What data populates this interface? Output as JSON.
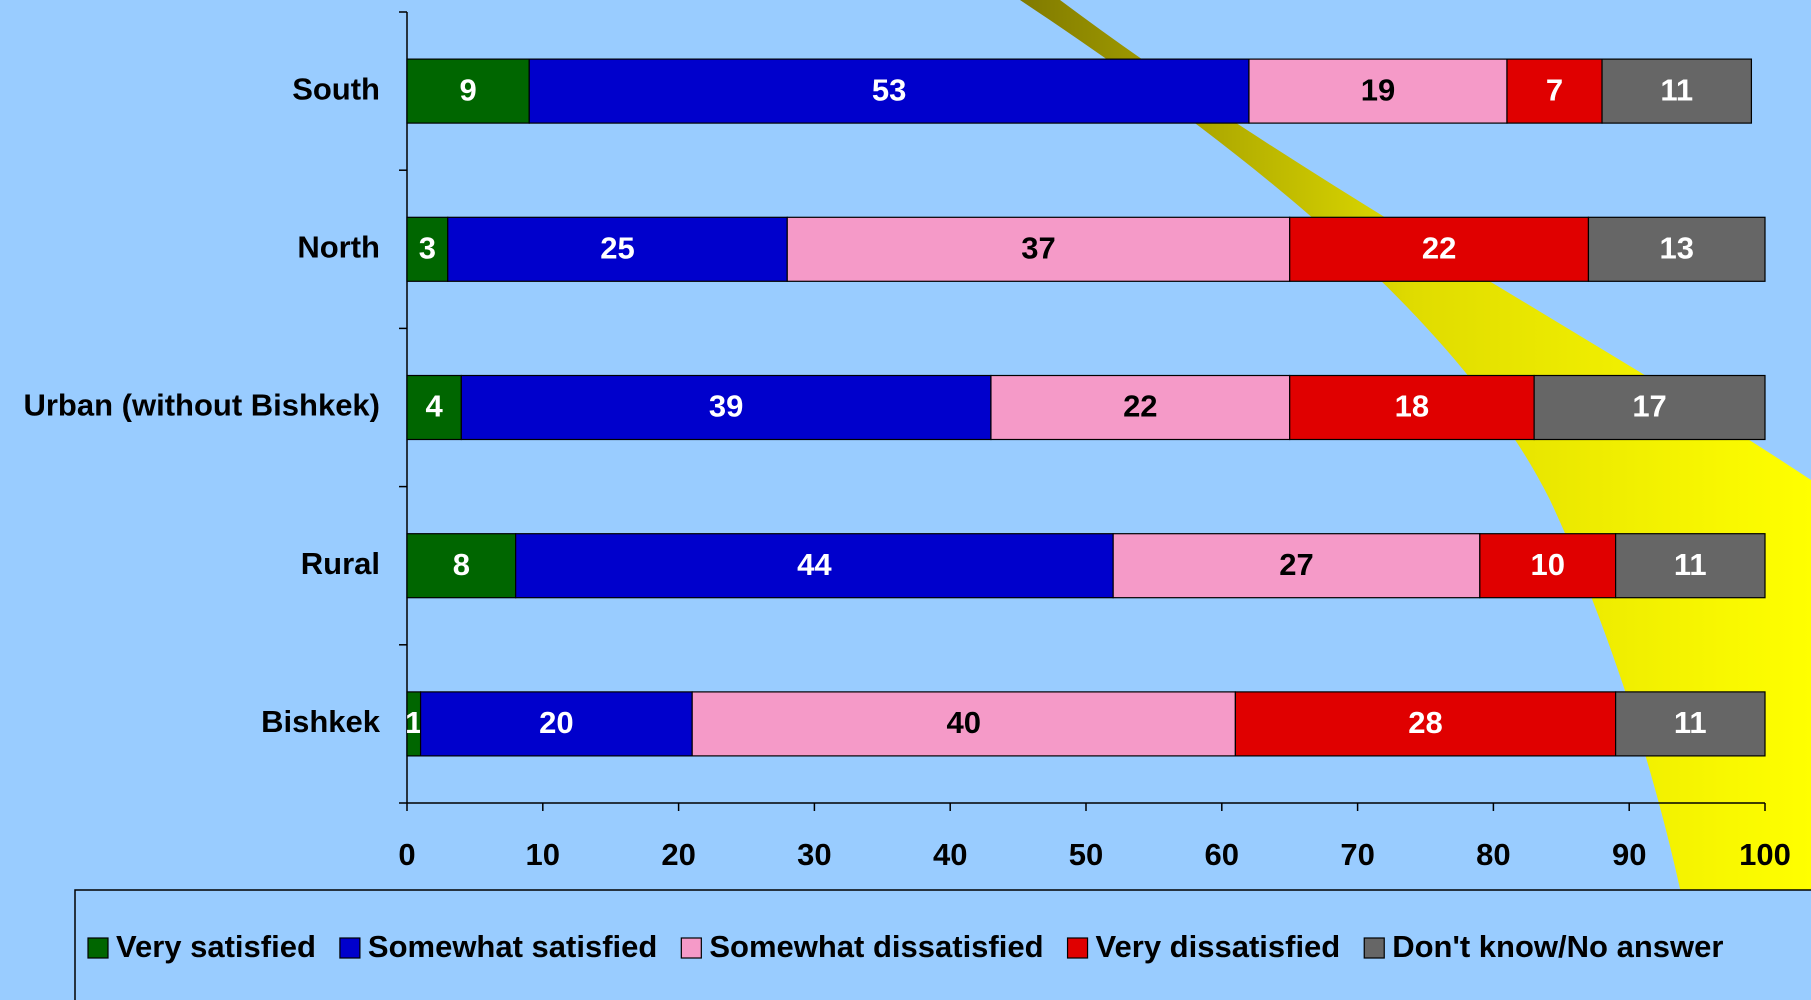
{
  "chart_data": {
    "type": "stacked_barh",
    "categories": [
      "South",
      "North",
      "Urban (without Bishkek)",
      "Rural",
      "Bishkek"
    ],
    "series": [
      {
        "name": "Very satisfied",
        "color": "#006600",
        "values": [
          9,
          3,
          4,
          8,
          1
        ]
      },
      {
        "name": "Somewhat satisfied",
        "color": "#0000cc",
        "values": [
          53,
          25,
          39,
          44,
          20
        ]
      },
      {
        "name": "Somewhat dissatisfied",
        "color": "#f59ac8",
        "values": [
          19,
          37,
          22,
          27,
          40
        ]
      },
      {
        "name": "Very dissatisfied",
        "color": "#e00000",
        "values": [
          7,
          22,
          18,
          10,
          28
        ]
      },
      {
        "name": "Don't know/No answer",
        "color": "#666666",
        "values": [
          11,
          13,
          17,
          11,
          11
        ]
      }
    ],
    "xlim": [
      0,
      100
    ],
    "xticks": [
      0,
      10,
      20,
      30,
      40,
      50,
      60,
      70,
      80,
      90,
      100
    ],
    "legend": "bottom"
  }
}
